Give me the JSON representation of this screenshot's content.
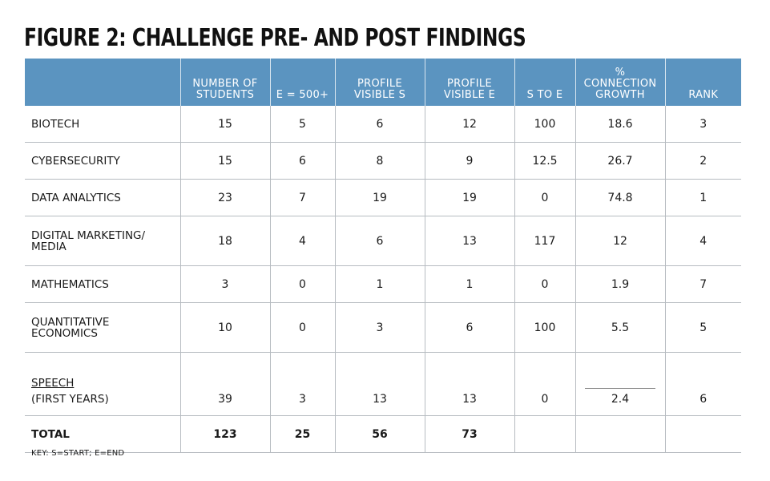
{
  "title": "FIGURE 2: CHALLENGE PRE- AND POST FINDINGS",
  "headers": [
    "",
    "NUMBER OF STUDENTS",
    "E = 500+",
    "PROFILE VISIBLE S",
    "PROFILE VISIBLE E",
    "S TO E",
    "% CONNECTION GROWTH",
    "RANK"
  ],
  "rows": [
    {
      "label": "BIOTECH",
      "c1": "15",
      "c2": "5",
      "c3": "6",
      "c4": "12",
      "c5": "100",
      "c6": "18.6",
      "c7": "3"
    },
    {
      "label": "CYBERSECURITY",
      "c1": "15",
      "c2": "6",
      "c3": "8",
      "c4": "9",
      "c5": "12.5",
      "c6": "26.7",
      "c7": "2"
    },
    {
      "label": "DATA ANALYTICS",
      "c1": "23",
      "c2": "7",
      "c3": "19",
      "c4": "19",
      "c5": "0",
      "c6": "74.8",
      "c7": "1"
    },
    {
      "label_l1": "DIGITAL MARKETING/",
      "label_l2": "MEDIA",
      "c1": "18",
      "c2": "4",
      "c3": "6",
      "c4": "13",
      "c5": "117",
      "c6": "12",
      "c7": "4"
    },
    {
      "label": "MATHEMATICS",
      "c1": "3",
      "c2": "0",
      "c3": "1",
      "c4": "1",
      "c5": "0",
      "c6": "1.9",
      "c7": "7"
    },
    {
      "label_l1": "QUANTITATIVE",
      "label_l2": "ECONOMICS",
      "c1": "10",
      "c2": "0",
      "c3": "3",
      "c4": "6",
      "c5": "100",
      "c6": "5.5",
      "c7": "5"
    },
    {
      "label_l1": "SPEECH",
      "label_l2": "(FIRST YEARS)",
      "c1": "39",
      "c2": "3",
      "c3": "13",
      "c4": "13",
      "c5": "0",
      "c6": "2.4",
      "c7": "6"
    }
  ],
  "total": {
    "label": "TOTAL",
    "c1": "123",
    "c2": "25",
    "c3": "56",
    "c4": "73",
    "c5": "",
    "c6": "",
    "c7": ""
  },
  "key": "KEY: S=START; E=END"
}
